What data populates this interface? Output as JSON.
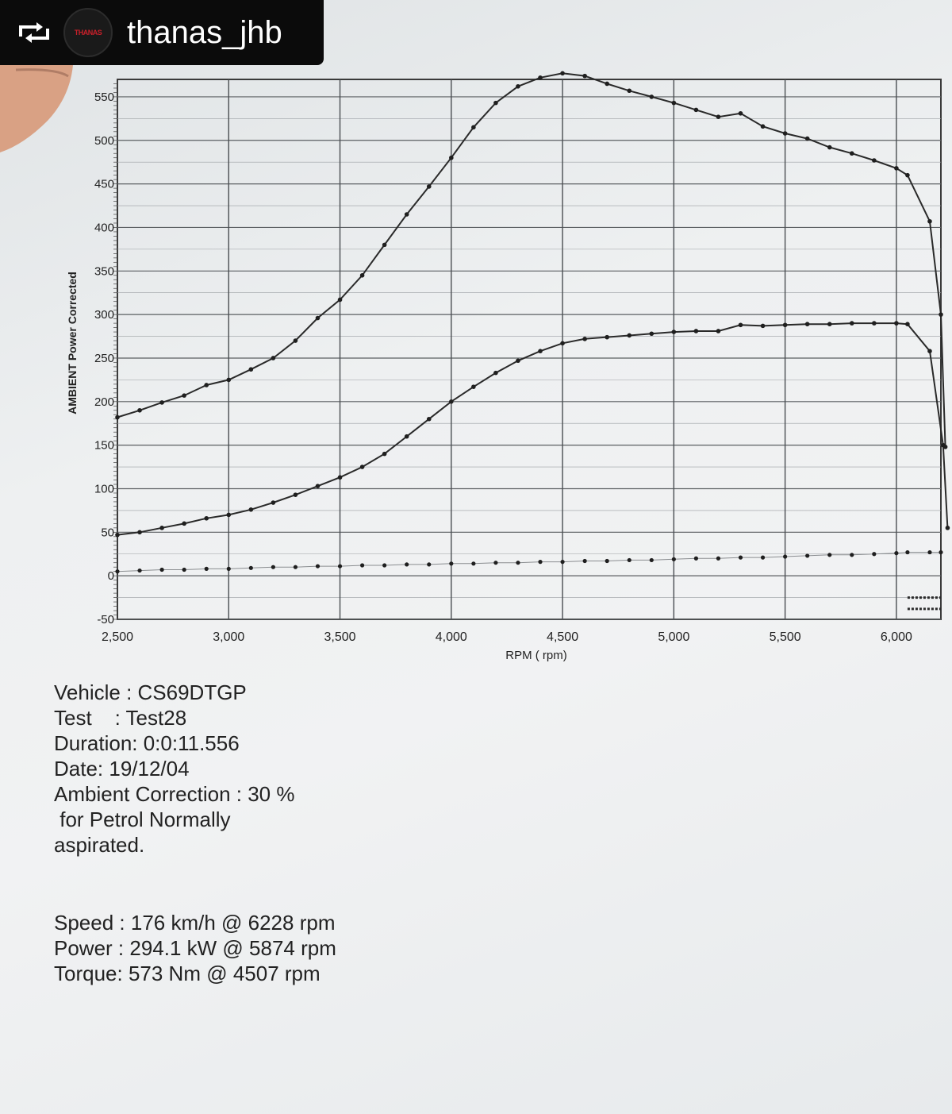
{
  "repost": {
    "username": "thanas_jhb",
    "avatar_text": "THANAS",
    "icon": "repost-icon"
  },
  "chart_data": {
    "type": "line",
    "title": "",
    "xlabel": "RPM ( rpm)",
    "ylabel": "AMBIENT Power Corrected",
    "xlim": [
      2500,
      6200
    ],
    "ylim": [
      -50,
      570
    ],
    "x_ticks": [
      "2,500",
      "3,000",
      "3,500",
      "4,000",
      "4,500",
      "5,000",
      "5,500",
      "6,000"
    ],
    "x_tick_values": [
      2500,
      3000,
      3500,
      4000,
      4500,
      5000,
      5500,
      6000
    ],
    "y_ticks": [
      "-50",
      "0",
      "50",
      "100",
      "150",
      "200",
      "250",
      "300",
      "350",
      "400",
      "450",
      "500",
      "550"
    ],
    "y_tick_values": [
      -50,
      0,
      50,
      100,
      150,
      200,
      250,
      300,
      350,
      400,
      450,
      500,
      550
    ],
    "grid": true,
    "series": [
      {
        "points": [
          [
            2500,
            182
          ],
          [
            2600,
            190
          ],
          [
            2700,
            199
          ],
          [
            2800,
            207
          ],
          [
            2900,
            219
          ],
          [
            3000,
            225
          ],
          [
            3100,
            237
          ],
          [
            3200,
            250
          ],
          [
            3300,
            270
          ],
          [
            3400,
            296
          ],
          [
            3500,
            317
          ],
          [
            3600,
            345
          ],
          [
            3700,
            380
          ],
          [
            3800,
            415
          ],
          [
            3900,
            447
          ],
          [
            4000,
            480
          ],
          [
            4100,
            515
          ],
          [
            4200,
            543
          ],
          [
            4300,
            562
          ],
          [
            4400,
            572
          ],
          [
            4500,
            577
          ],
          [
            4600,
            574
          ],
          [
            4700,
            565
          ],
          [
            4800,
            557
          ],
          [
            4900,
            550
          ],
          [
            5000,
            543
          ],
          [
            5100,
            535
          ],
          [
            5200,
            527
          ],
          [
            5300,
            531
          ],
          [
            5400,
            516
          ],
          [
            5500,
            508
          ],
          [
            5600,
            502
          ],
          [
            5700,
            492
          ],
          [
            5800,
            485
          ],
          [
            5900,
            477
          ],
          [
            6000,
            468
          ],
          [
            6050,
            460
          ],
          [
            6150,
            407
          ],
          [
            6200,
            300
          ],
          [
            6220,
            148
          ]
        ]
      },
      {
        "points": [
          [
            2500,
            47
          ],
          [
            2600,
            50
          ],
          [
            2700,
            55
          ],
          [
            2800,
            60
          ],
          [
            2900,
            66
          ],
          [
            3000,
            70
          ],
          [
            3100,
            76
          ],
          [
            3200,
            84
          ],
          [
            3300,
            93
          ],
          [
            3400,
            103
          ],
          [
            3500,
            113
          ],
          [
            3600,
            125
          ],
          [
            3700,
            140
          ],
          [
            3800,
            160
          ],
          [
            3900,
            180
          ],
          [
            4000,
            200
          ],
          [
            4100,
            217
          ],
          [
            4200,
            233
          ],
          [
            4300,
            247
          ],
          [
            4400,
            258
          ],
          [
            4500,
            267
          ],
          [
            4600,
            272
          ],
          [
            4700,
            274
          ],
          [
            4800,
            276
          ],
          [
            4900,
            278
          ],
          [
            5000,
            280
          ],
          [
            5100,
            281
          ],
          [
            5200,
            281
          ],
          [
            5300,
            288
          ],
          [
            5400,
            287
          ],
          [
            5500,
            288
          ],
          [
            5600,
            289
          ],
          [
            5700,
            289
          ],
          [
            5800,
            290
          ],
          [
            5900,
            290
          ],
          [
            6000,
            290
          ],
          [
            6050,
            289
          ],
          [
            6150,
            258
          ],
          [
            6210,
            150
          ],
          [
            6230,
            55
          ]
        ]
      },
      {
        "points": [
          [
            2500,
            5
          ],
          [
            2600,
            6
          ],
          [
            2700,
            7
          ],
          [
            2800,
            7
          ],
          [
            2900,
            8
          ],
          [
            3000,
            8
          ],
          [
            3100,
            9
          ],
          [
            3200,
            10
          ],
          [
            3300,
            10
          ],
          [
            3400,
            11
          ],
          [
            3500,
            11
          ],
          [
            3600,
            12
          ],
          [
            3700,
            12
          ],
          [
            3800,
            13
          ],
          [
            3900,
            13
          ],
          [
            4000,
            14
          ],
          [
            4100,
            14
          ],
          [
            4200,
            15
          ],
          [
            4300,
            15
          ],
          [
            4400,
            16
          ],
          [
            4500,
            16
          ],
          [
            4600,
            17
          ],
          [
            4700,
            17
          ],
          [
            4800,
            18
          ],
          [
            4900,
            18
          ],
          [
            5000,
            19
          ],
          [
            5100,
            20
          ],
          [
            5200,
            20
          ],
          [
            5300,
            21
          ],
          [
            5400,
            21
          ],
          [
            5500,
            22
          ],
          [
            5600,
            23
          ],
          [
            5700,
            24
          ],
          [
            5800,
            24
          ],
          [
            5900,
            25
          ],
          [
            6000,
            26
          ],
          [
            6050,
            27
          ],
          [
            6150,
            27
          ],
          [
            6200,
            27
          ]
        ]
      }
    ],
    "end_stubs": [
      -25,
      -38
    ]
  },
  "info": {
    "vehicle": "Vehicle : CS69DTGP",
    "test": "Test    : Test28",
    "duration": "Duration: 0:0:11.556",
    "date": "Date: 19/12/04",
    "correction_1": "Ambient Correction : 30 %",
    "correction_2": " for Petrol Normally",
    "correction_3": "aspirated.",
    "speed": "Speed : 176 km/h @ 6228 rpm",
    "power": "Power : 294.1 kW @ 5874 rpm",
    "torque": "Torque: 573 Nm @ 4507 rpm"
  }
}
